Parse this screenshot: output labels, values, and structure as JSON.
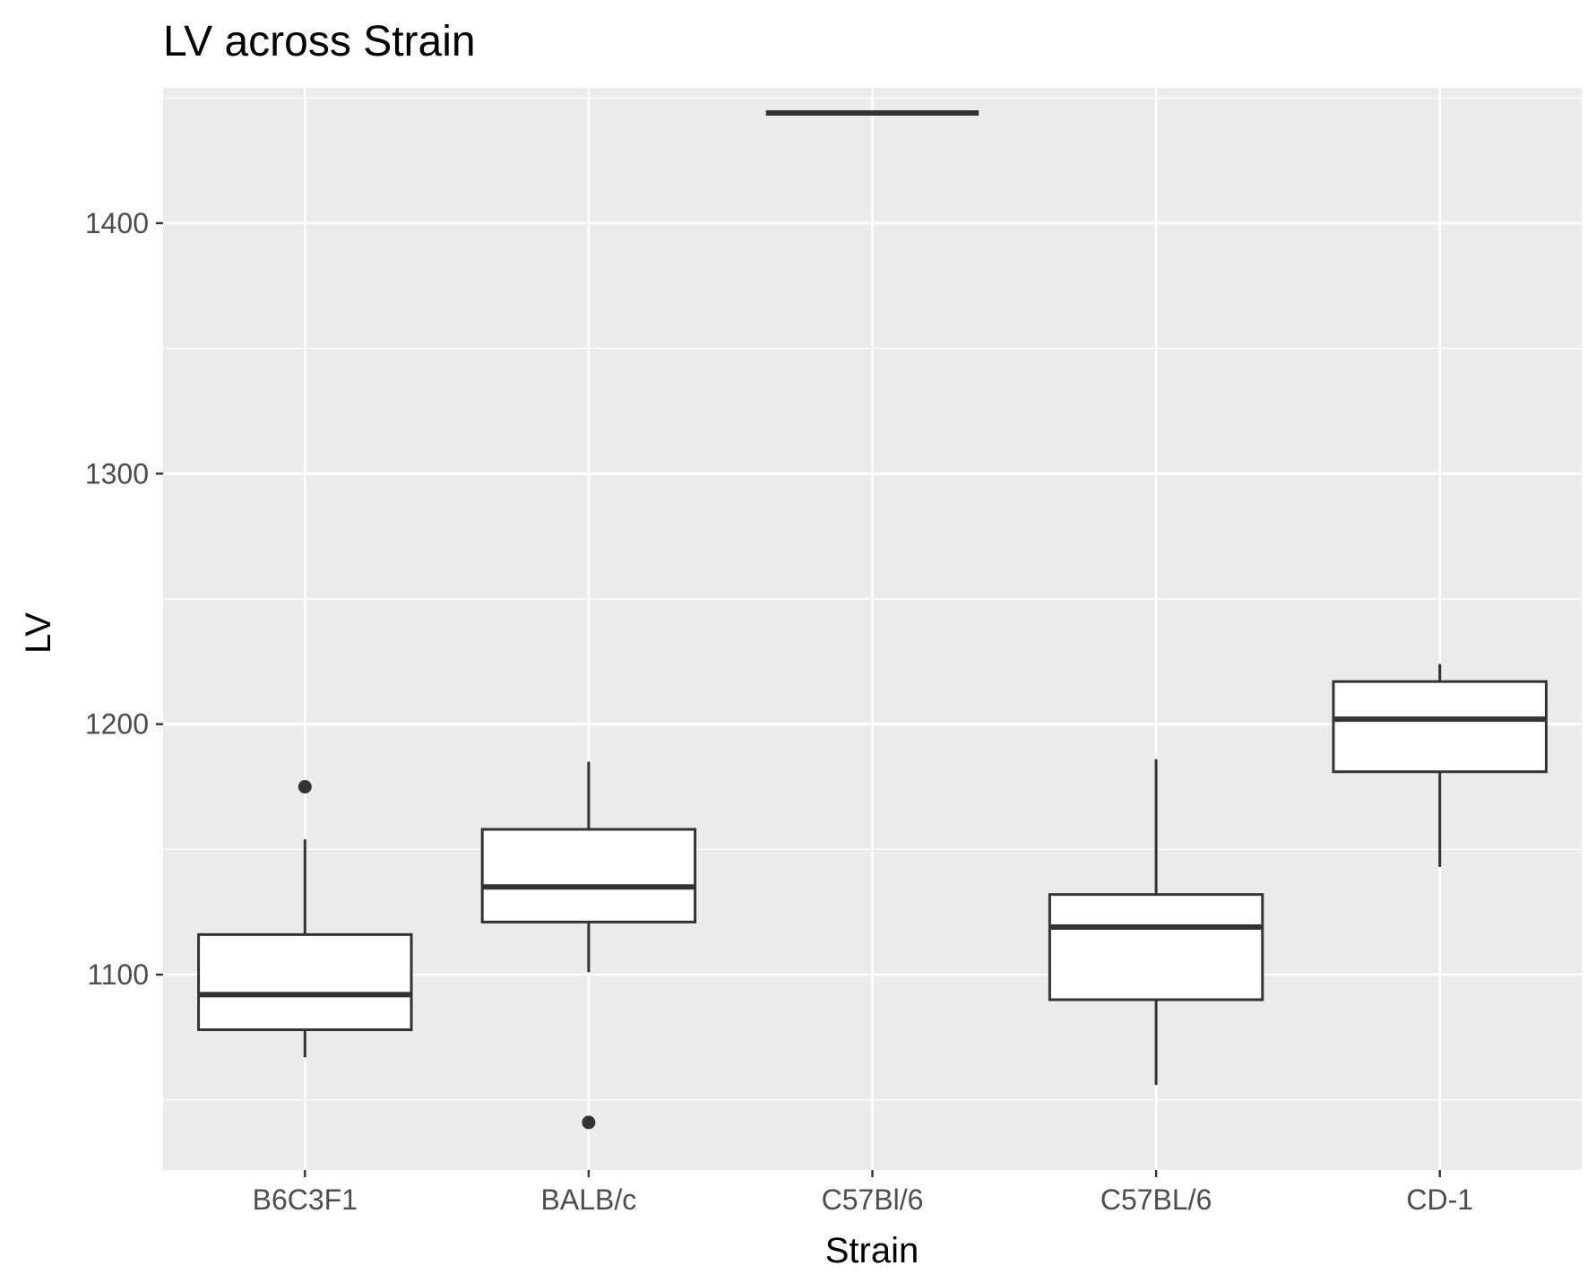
{
  "colors": {
    "panel_background": "#ebebeb",
    "grid": "#ffffff",
    "box_fill": "#ffffff",
    "box_stroke": "#333333",
    "tick": "#333333",
    "tick_label": "#4d4d4d"
  },
  "chart_data": {
    "type": "boxplot",
    "title": "LV across Strain",
    "xlabel": "Strain",
    "ylabel": "LV",
    "categories": [
      "B6C3F1",
      "BALB/c",
      "C57Bl/6",
      "C57BL/6",
      "CD-1"
    ],
    "ylim": [
      1022,
      1454
    ],
    "y_ticks": [
      1100,
      1200,
      1300,
      1400
    ],
    "y_tick_labels": [
      "1100",
      "1200",
      "1300",
      "1400"
    ],
    "grid": true,
    "legend": "none",
    "boxes": [
      {
        "category": "B6C3F1",
        "whisker_low": 1067,
        "q1": 1078,
        "median": 1092,
        "q3": 1116,
        "whisker_high": 1154,
        "outliers": [
          1175
        ]
      },
      {
        "category": "BALB/c",
        "whisker_low": 1101,
        "q1": 1121,
        "median": 1135,
        "q3": 1158,
        "whisker_high": 1185,
        "outliers": [
          1041
        ]
      },
      {
        "category": "C57Bl/6",
        "whisker_low": 1444,
        "q1": 1444,
        "median": 1444,
        "q3": 1444,
        "whisker_high": 1444,
        "outliers": []
      },
      {
        "category": "C57BL/6",
        "whisker_low": 1056,
        "q1": 1090,
        "median": 1119,
        "q3": 1132,
        "whisker_high": 1186,
        "outliers": []
      },
      {
        "category": "CD-1",
        "whisker_low": 1143,
        "q1": 1181,
        "median": 1202,
        "q3": 1217,
        "whisker_high": 1224,
        "outliers": []
      }
    ]
  }
}
